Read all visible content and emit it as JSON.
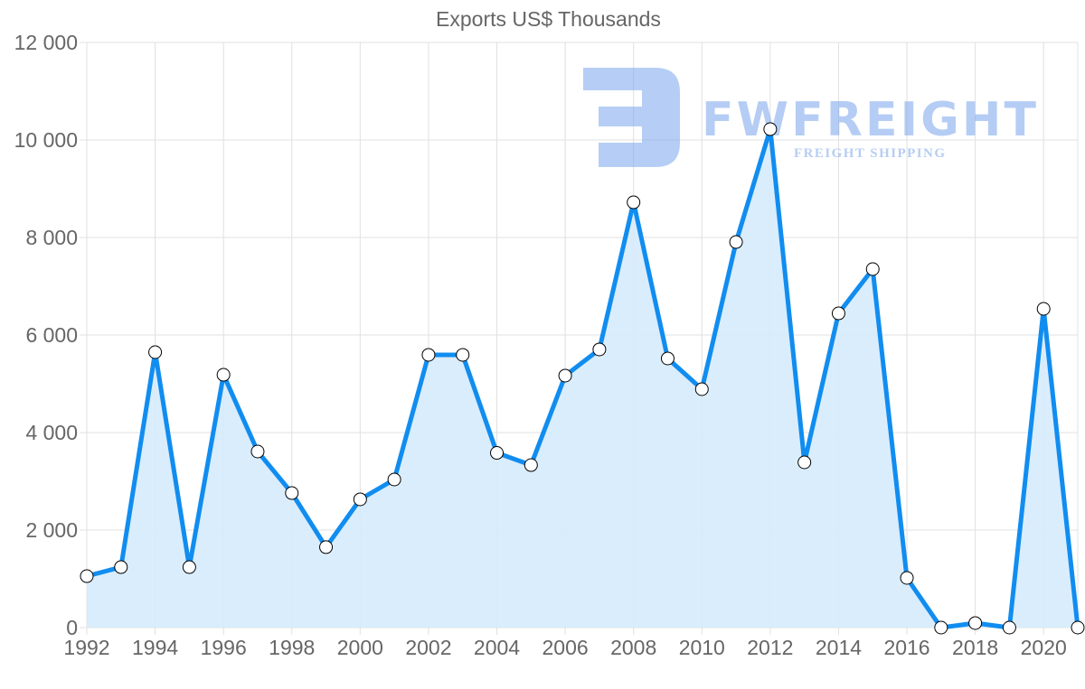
{
  "chart_data": {
    "type": "area",
    "title": "Exports US$ Thousands",
    "xlabel": "",
    "ylabel": "",
    "ylim": [
      0,
      12000
    ],
    "yticks": [
      "0",
      "2 000",
      "4 000",
      "6 000",
      "8 000",
      "10 000",
      "12 000"
    ],
    "xticks": [
      "1992",
      "1994",
      "1996",
      "1998",
      "2000",
      "2002",
      "2004",
      "2006",
      "2008",
      "2010",
      "2012",
      "2014",
      "2016",
      "2018",
      "2020"
    ],
    "grid": true,
    "legend": "none",
    "x": [
      1992,
      1993,
      1994,
      1995,
      1996,
      1997,
      1998,
      1999,
      2000,
      2001,
      2002,
      2003,
      2004,
      2005,
      2006,
      2007,
      2008,
      2009,
      2010,
      2011,
      2012,
      2013,
      2014,
      2015,
      2016,
      2017,
      2018,
      2019,
      2020,
      2021
    ],
    "series": [
      {
        "name": "Exports US$ Thousands",
        "values": [
          1055,
          1240,
          5648,
          1240,
          5185,
          3611,
          2759,
          1650,
          2630,
          3037,
          5593,
          5593,
          3583,
          3333,
          5167,
          5704,
          8722,
          5519,
          4889,
          7907,
          10222,
          3389,
          6444,
          7352,
          1019,
          0,
          93,
          0,
          6537,
          0
        ]
      }
    ],
    "colors": {
      "line": "#118df0",
      "fill": "#d6ebfc",
      "point_fill": "#ffffff",
      "point_stroke": "#000000",
      "grid": "#e0e0e0"
    }
  },
  "watermark": {
    "brand": "FWFREIGHT",
    "tagline": "FREIGHT SHIPPING"
  }
}
